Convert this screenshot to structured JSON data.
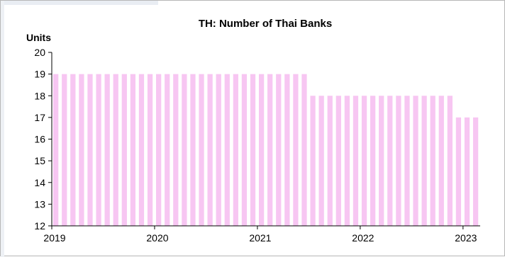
{
  "chart_data": {
    "type": "bar",
    "title": "TH: Number of Thai Banks",
    "ylabel": "Units",
    "xlabel": "",
    "ylim": [
      12,
      20
    ],
    "yticks": [
      12,
      13,
      14,
      15,
      16,
      17,
      18,
      19,
      20
    ],
    "xtick_labels": [
      "2019",
      "2020",
      "2021",
      "2022",
      "2023"
    ],
    "bar_color": "#f7c6f2",
    "grid": false,
    "frequency": "monthly",
    "start": "2019-01",
    "end": "2023-02",
    "values": [
      19,
      19,
      19,
      19,
      19,
      19,
      19,
      19,
      19,
      19,
      19,
      19,
      19,
      19,
      19,
      19,
      19,
      19,
      19,
      19,
      19,
      19,
      19,
      19,
      19,
      19,
      19,
      19,
      19,
      19,
      18,
      18,
      18,
      18,
      18,
      18,
      18,
      18,
      18,
      18,
      18,
      18,
      18,
      18,
      18,
      18,
      18,
      17,
      17,
      17
    ]
  }
}
